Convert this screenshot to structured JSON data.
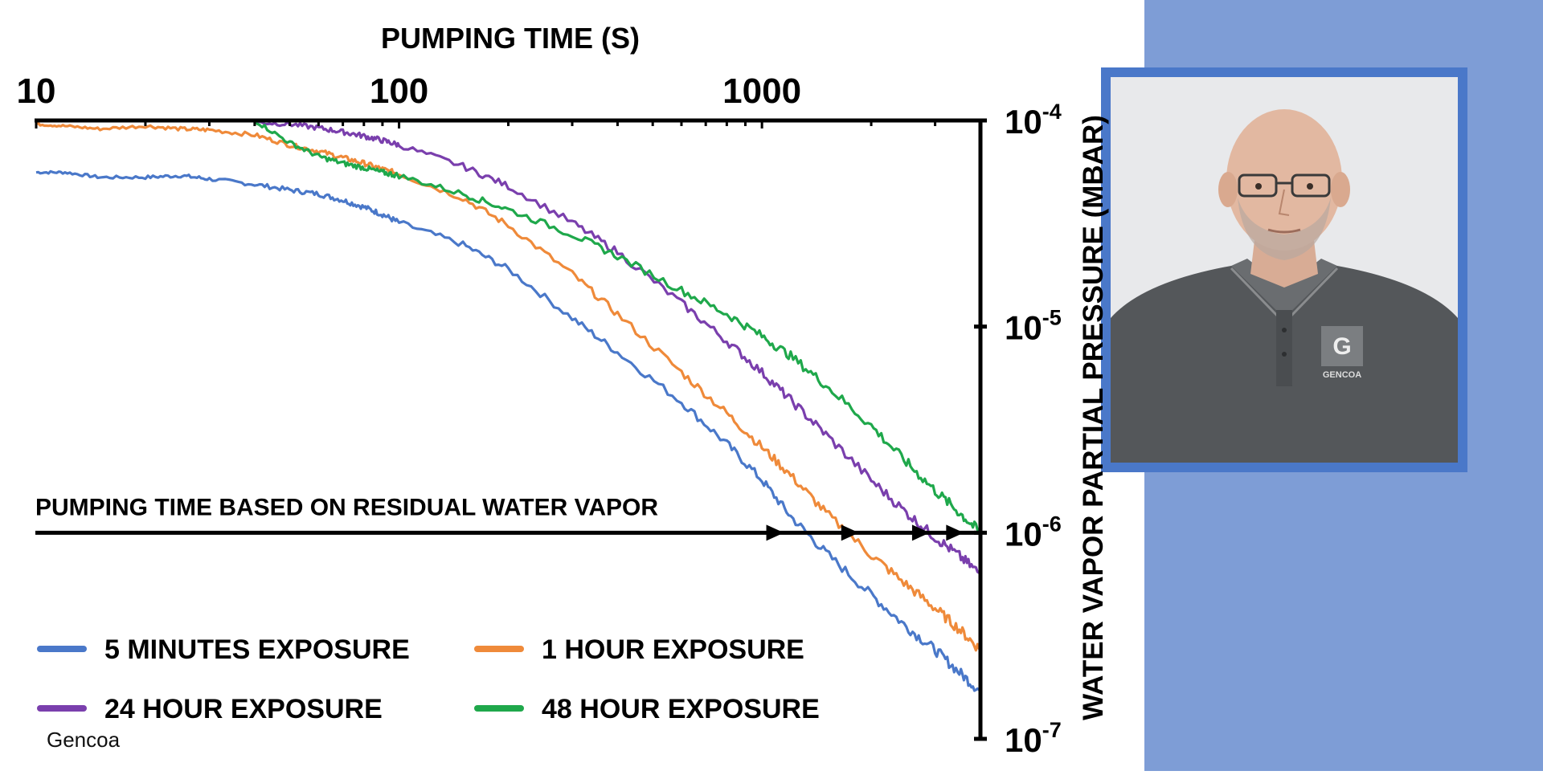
{
  "chart_data": {
    "type": "line",
    "title": "",
    "xlabel": "PUMPING TIME (S)",
    "ylabel": "WATER VAPOR PARTIAL PRESSURE (MBAR)",
    "x_scale": "log",
    "y_scale": "log",
    "xlim": [
      10,
      4000
    ],
    "ylim": [
      1e-07,
      0.0001
    ],
    "x_axis_position": "top",
    "y_axis_position": "right",
    "x_ticks": [
      {
        "value": 10,
        "label": "10"
      },
      {
        "value": 100,
        "label": "100"
      },
      {
        "value": 1000,
        "label": "1000"
      }
    ],
    "y_ticks": [
      {
        "value": 0.0001,
        "label": "10",
        "exp": "-4"
      },
      {
        "value": 1e-05,
        "label": "10",
        "exp": "-5"
      },
      {
        "value": 1e-06,
        "label": "10",
        "exp": "-6"
      },
      {
        "value": 1e-07,
        "label": "10",
        "exp": "-7"
      }
    ],
    "grid": false,
    "legend_position": "bottom-left",
    "series": [
      {
        "name": "5 MINUTES EXPOSURE",
        "color": "#4a78c9",
        "x": [
          10,
          12,
          15,
          20,
          25,
          30,
          40,
          50,
          60,
          70,
          80,
          90,
          100,
          150,
          200,
          300,
          400,
          600,
          800,
          1000,
          1200,
          1500,
          2000,
          2500,
          3000,
          3500,
          4000
        ],
        "y": [
          5.6e-05,
          5.6e-05,
          5.3e-05,
          5.3e-05,
          5.4e-05,
          5.2e-05,
          4.9e-05,
          4.6e-05,
          4.4e-05,
          4.1e-05,
          3.8e-05,
          3.5e-05,
          3.2e-05,
          2.5e-05,
          1.9e-05,
          1.1e-05,
          7.5e-06,
          4.3e-06,
          2.7e-06,
          1.8e-06,
          1.2e-06,
          8e-07,
          5e-07,
          3.5e-07,
          2.7e-07,
          2.1e-07,
          1.7e-07
        ]
      },
      {
        "name": "1 HOUR EXPOSURE",
        "color": "#ef8a3a",
        "x": [
          10,
          12,
          15,
          20,
          25,
          30,
          40,
          50,
          60,
          70,
          80,
          90,
          100,
          150,
          200,
          300,
          400,
          600,
          800,
          1000,
          1200,
          1500,
          2000,
          2500,
          3000,
          3500,
          4000
        ],
        "y": [
          9.6e-05,
          9.4e-05,
          9.1e-05,
          9.4e-05,
          9.1e-05,
          9e-05,
          8.5e-05,
          7.6e-05,
          7.1e-05,
          6.6e-05,
          6.2e-05,
          5.8e-05,
          5.5e-05,
          4.2e-05,
          3.1e-05,
          1.8e-05,
          1.15e-05,
          6e-06,
          3.8e-06,
          2.6e-06,
          1.9e-06,
          1.25e-06,
          7.8e-07,
          5.6e-07,
          4.3e-07,
          3.4e-07,
          2.7e-07
        ]
      },
      {
        "name": "24 HOUR EXPOSURE",
        "color": "#7a3fad",
        "x": [
          40,
          50,
          60,
          70,
          80,
          90,
          100,
          150,
          200,
          300,
          400,
          600,
          800,
          1000,
          1200,
          1500,
          2000,
          2500,
          3000,
          3500,
          4000
        ],
        "y": [
          9.8e-05,
          9.6e-05,
          9.2e-05,
          8.8e-05,
          8.4e-05,
          8e-05,
          7.6e-05,
          6e-05,
          4.8e-05,
          3.2e-05,
          2.3e-05,
          1.3e-05,
          8.5e-06,
          6e-06,
          4.4e-06,
          3e-06,
          1.8e-06,
          1.25e-06,
          9.5e-07,
          7.7e-07,
          6.3e-07
        ]
      },
      {
        "name": "48 HOUR EXPOSURE",
        "color": "#1fa84b",
        "x": [
          40,
          50,
          60,
          70,
          80,
          90,
          100,
          150,
          200,
          300,
          400,
          600,
          800,
          1000,
          1200,
          1500,
          2000,
          2500,
          3000,
          3500,
          4000
        ],
        "y": [
          0.0001,
          7.8e-05,
          6.7e-05,
          6.2e-05,
          5.9e-05,
          5.6e-05,
          5.4e-05,
          4.4e-05,
          3.7e-05,
          2.8e-05,
          2.2e-05,
          1.5e-05,
          1.15e-05,
          9e-06,
          7.2e-06,
          5.2e-06,
          3.3e-06,
          2.2e-06,
          1.6e-06,
          1.25e-06,
          1e-06
        ]
      }
    ],
    "annotations": [
      {
        "text": "PUMPING TIME BASED ON RESIDUAL WATER VAPOR",
        "type": "horizontal-line-with-arrows",
        "y": 1e-06,
        "arrow_x": [
          1150,
          1850,
          2900,
          3600
        ]
      }
    ]
  },
  "watermark": "Gencoa",
  "photo": {
    "logo_text": "GENCOA",
    "logo_letter": "G"
  }
}
